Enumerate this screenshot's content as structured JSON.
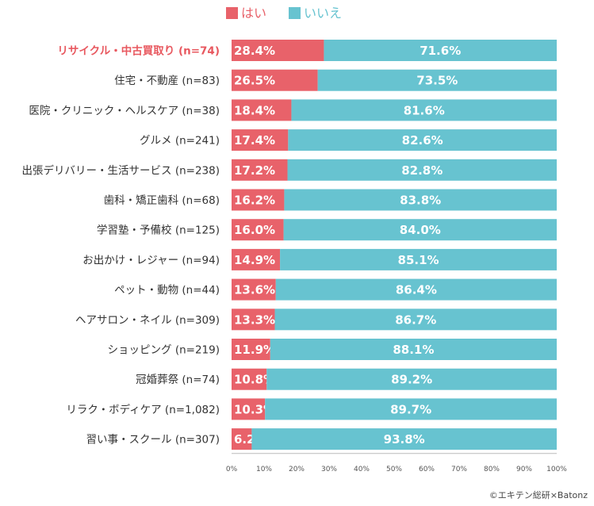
{
  "chart_data": {
    "type": "bar",
    "orientation": "horizontal",
    "stacked": true,
    "title": "",
    "xlabel": "",
    "ylabel": "",
    "xlim": [
      0,
      100
    ],
    "x_ticks": [
      "0%",
      "10%",
      "20%",
      "30%",
      "40%",
      "50%",
      "60%",
      "70%",
      "80%",
      "90%",
      "100%"
    ],
    "highlight_index": 0,
    "categories": [
      "リサイクル・中古買取り (n=74)",
      "住宅・不動産 (n=83)",
      "医院・クリニック・ヘルスケア (n=38)",
      "グルメ (n=241)",
      "出張デリバリー・生活サービス (n=238)",
      "歯科・矯正歯科 (n=68)",
      "学習塾・予備校 (n=125)",
      "お出かけ・レジャー (n=94)",
      "ペット・動物 (n=44)",
      "ヘアサロン・ネイル (n=309)",
      "ショッピング (n=219)",
      "冠婚葬祭 (n=74)",
      "リラク・ボディケア (n=1,082)",
      "習い事・スクール (n=307)"
    ],
    "series": [
      {
        "name": "はい",
        "color": "#e8626a",
        "values": [
          28.4,
          26.5,
          18.4,
          17.4,
          17.2,
          16.2,
          16.0,
          14.9,
          13.6,
          13.3,
          11.9,
          10.8,
          10.3,
          6.2
        ],
        "labels": [
          "28.4%",
          "26.5%",
          "18.4%",
          "17.4%",
          "17.2%",
          "16.2%",
          "16.0%",
          "14.9%",
          "13.6%",
          "13.3%",
          "11.9%",
          "10.8%",
          "10.3%",
          "6.2%"
        ]
      },
      {
        "name": "いいえ",
        "color": "#67c3d0",
        "values": [
          71.6,
          73.5,
          81.6,
          82.6,
          82.8,
          83.8,
          84.0,
          85.1,
          86.4,
          86.7,
          88.1,
          89.2,
          89.7,
          93.8
        ],
        "labels": [
          "71.6%",
          "73.5%",
          "81.6%",
          "82.6%",
          "82.8%",
          "83.8%",
          "84.0%",
          "85.1%",
          "86.4%",
          "86.7%",
          "88.1%",
          "89.2%",
          "89.7%",
          "93.8%"
        ]
      }
    ]
  },
  "credit": "©エキテン総研×Batonz"
}
